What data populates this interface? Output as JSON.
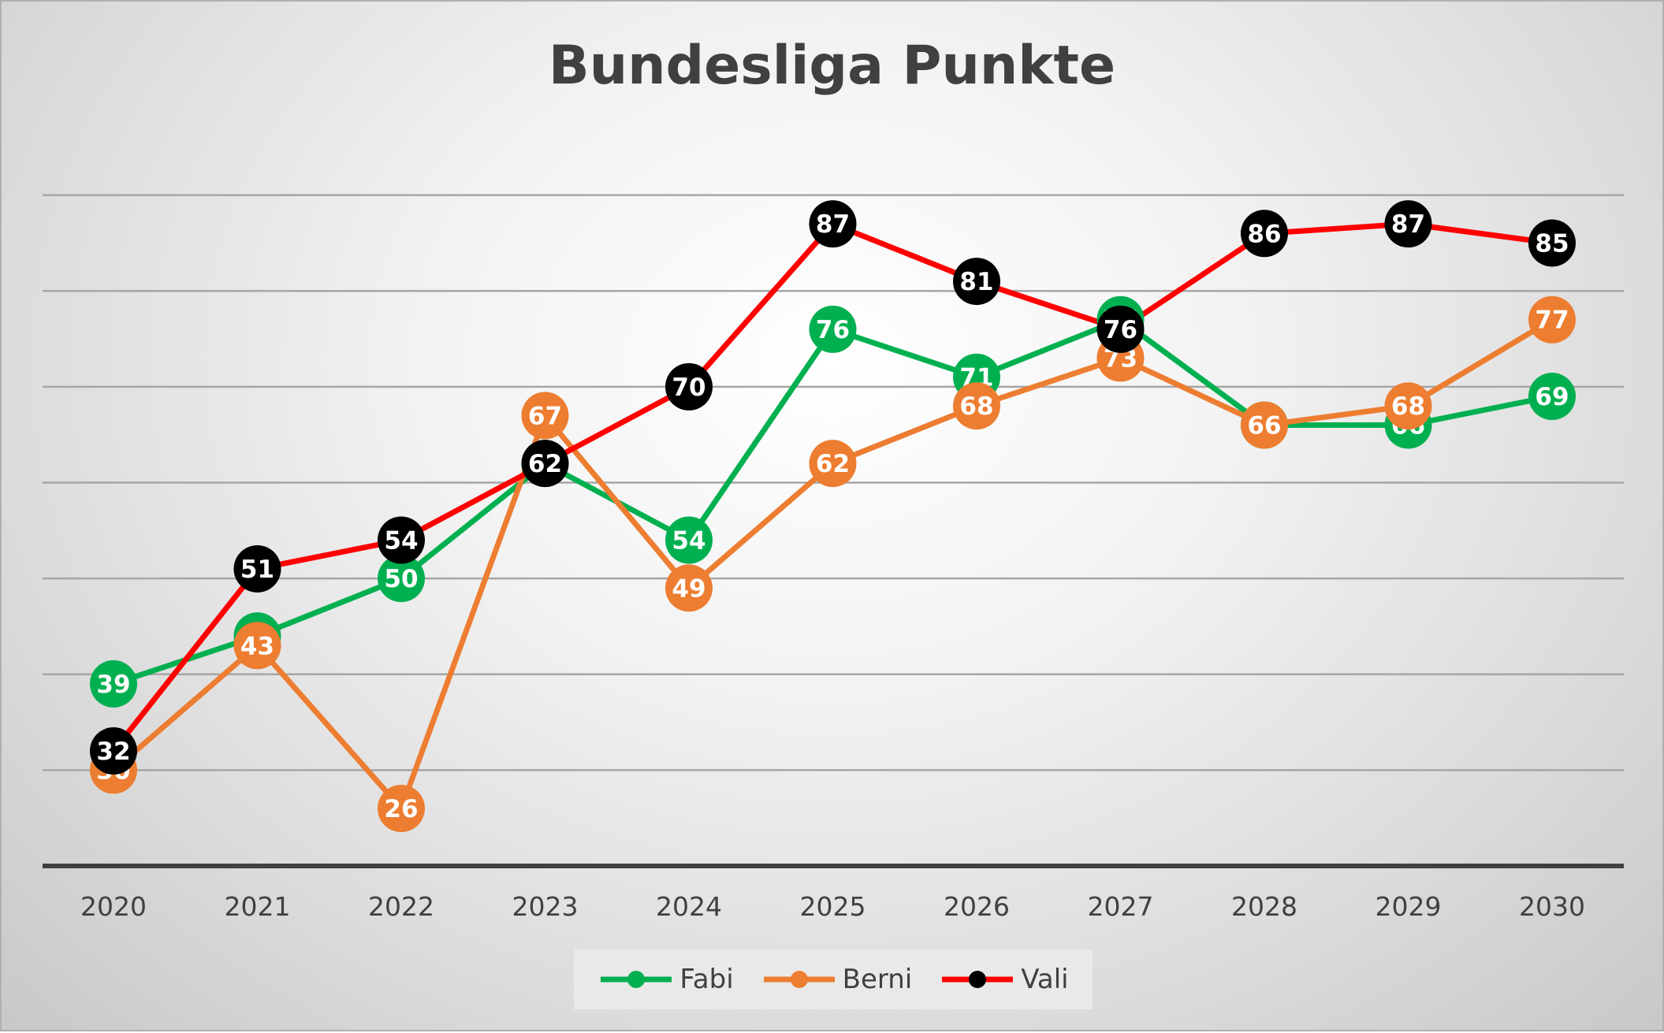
{
  "chart_data": {
    "type": "line",
    "title": "Bundesliga Punkte",
    "xlabel": "",
    "ylabel": "",
    "categories": [
      "2020",
      "2021",
      "2022",
      "2023",
      "2024",
      "2025",
      "2026",
      "2027",
      "2028",
      "2029",
      "2030"
    ],
    "ylim": [
      20,
      100
    ],
    "gridlines": [
      30,
      40,
      50,
      60,
      70,
      80,
      90
    ],
    "grid": true,
    "y_tick_labels_shown": false,
    "legend_position": "bottom",
    "series": [
      {
        "name": "Fabi",
        "color": "#00b050",
        "values": [
          39,
          44,
          50,
          62,
          54,
          76,
          71,
          77,
          66,
          66,
          69
        ]
      },
      {
        "name": "Berni",
        "color": "#ed7d31",
        "values": [
          30,
          43,
          26,
          67,
          49,
          62,
          68,
          73,
          66,
          68,
          77
        ]
      },
      {
        "name": "Vali",
        "color": "#ff0000",
        "marker_color": "#000000",
        "values": [
          32,
          51,
          54,
          62,
          70,
          87,
          81,
          76,
          86,
          87,
          85
        ]
      }
    ]
  }
}
